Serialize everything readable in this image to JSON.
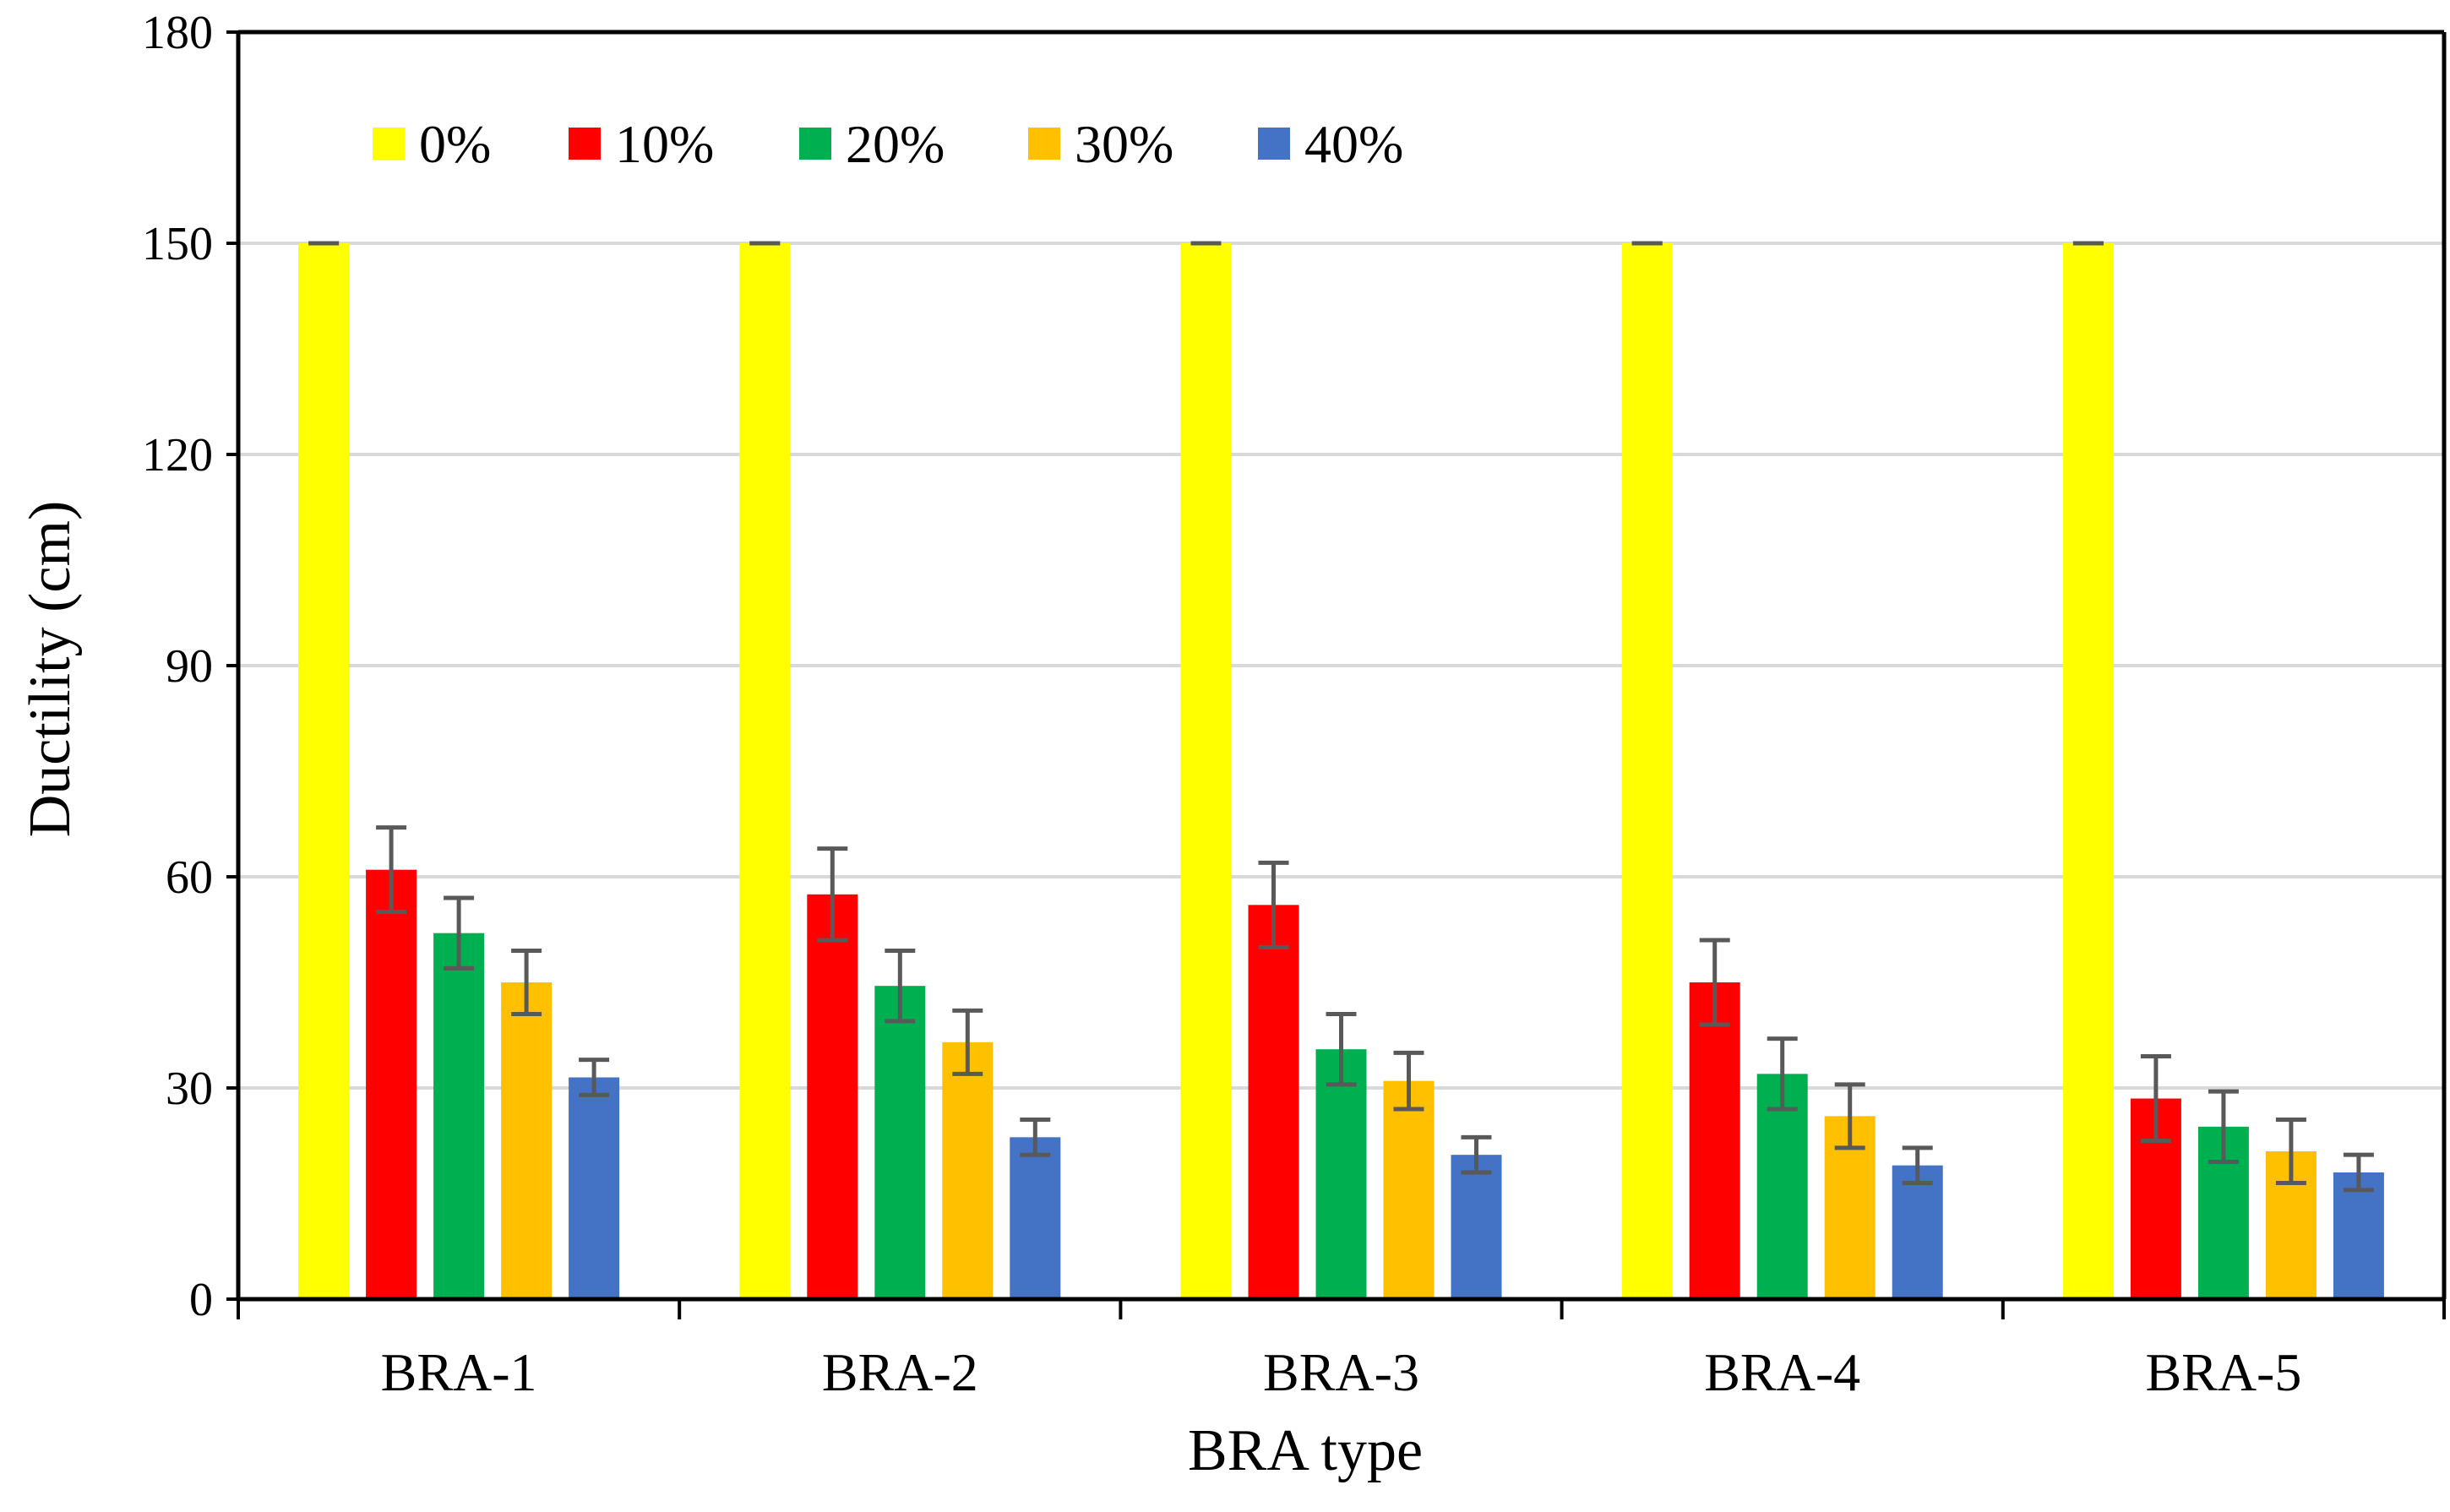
{
  "chart_data": {
    "type": "bar",
    "title": "",
    "xlabel": "BRA type",
    "ylabel": "Ductility (cm)",
    "ylim": [
      0,
      180
    ],
    "yticks": [
      0,
      30,
      60,
      90,
      120,
      150,
      180
    ],
    "ytick_labels": [
      "0",
      "30",
      "60",
      "90",
      "120",
      "150",
      "180"
    ],
    "grid": true,
    "legend_position": "top-left",
    "categories": [
      "BRA-1",
      "BRA-2",
      "BRA-3",
      "BRA-4",
      "BRA-5"
    ],
    "series": [
      {
        "name": "0%",
        "color": "#FFFF00",
        "values": [
          150,
          150,
          150,
          150,
          150
        ],
        "errors": [
          0,
          0,
          0,
          0,
          0
        ]
      },
      {
        "name": "10%",
        "color": "#FF0000",
        "values": [
          61,
          57.5,
          56,
          45,
          28.5
        ],
        "errors": [
          6,
          6.5,
          6,
          6,
          6
        ]
      },
      {
        "name": "20%",
        "color": "#00B050",
        "values": [
          52,
          44.5,
          35.5,
          32,
          24.5
        ],
        "errors": [
          5,
          5,
          5,
          5,
          5
        ]
      },
      {
        "name": "30%",
        "color": "#FFC000",
        "values": [
          45,
          36.5,
          31,
          26,
          21
        ],
        "errors": [
          4.5,
          4.5,
          4,
          4.5,
          4.5
        ]
      },
      {
        "name": "40%",
        "color": "#4472C4",
        "values": [
          31.5,
          23,
          20.5,
          19,
          18
        ],
        "errors": [
          2.5,
          2.5,
          2.5,
          2.5,
          2.5
        ]
      }
    ]
  }
}
